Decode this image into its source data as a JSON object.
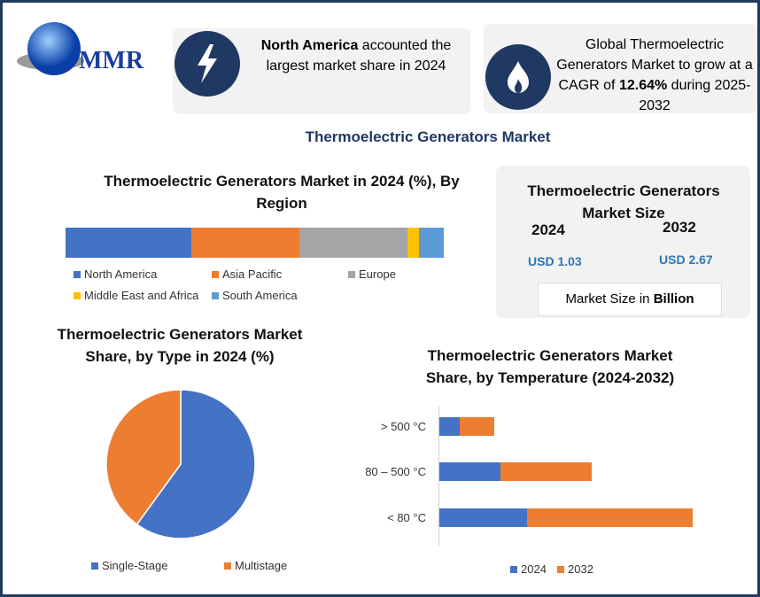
{
  "logo": {
    "text": "MMR"
  },
  "banner1": {
    "bold": "North America",
    "rest": " accounted the largest market share in 2024"
  },
  "banner2": {
    "pre": "Global Thermoelectric Generators Market to grow at a CAGR of ",
    "bold": "12.64%",
    "post": " during 2025-2032"
  },
  "main_title": "Thermoelectric Generators Market",
  "size_card": {
    "title": "Thermoelectric Generators Market Size",
    "year1": "2024",
    "value1": "USD 1.03",
    "year2": "2032",
    "value2": "USD 2.67",
    "unit_pre": "Market Size in ",
    "unit_bold": "Billion"
  },
  "colors": {
    "blue": "#4472c4",
    "orange": "#ed7d31",
    "gray": "#a5a5a5",
    "yellow": "#ffc000",
    "lightblue": "#5b9bd5",
    "navy": "#1f3864"
  },
  "chart_data": [
    {
      "type": "bar",
      "stacked": true,
      "title": "Thermoelectric Generators Market in 2024 (%), By Region",
      "series": [
        {
          "name": "North America",
          "values": [
            33.2
          ]
        },
        {
          "name": "Asia Pacific",
          "values": [
            28.6
          ]
        },
        {
          "name": "Europe",
          "values": [
            28.6
          ]
        },
        {
          "name": "Middle East and Africa",
          "values": [
            3.1
          ]
        },
        {
          "name": "South America",
          "values": [
            6.5
          ]
        }
      ],
      "legend": "bottom"
    },
    {
      "type": "pie",
      "title": "Thermoelectric Generators Market Share, by Type in 2024 (%)",
      "categories": [
        "Single-Stage",
        "Multistage"
      ],
      "values": [
        60,
        40
      ],
      "legend": "bottom"
    },
    {
      "type": "bar",
      "stacked": true,
      "orientation": "horizontal",
      "title": "Thermoelectric Generators Market Share, by Temperature (2024-2032)",
      "categories": [
        "> 500 °C",
        "80 – 500 °C",
        "< 80 °C"
      ],
      "series": [
        {
          "name": "2024",
          "values": [
            23,
            69,
            99
          ]
        },
        {
          "name": "2032",
          "values": [
            39,
            103,
            187
          ]
        }
      ],
      "legend": "bottom"
    }
  ]
}
